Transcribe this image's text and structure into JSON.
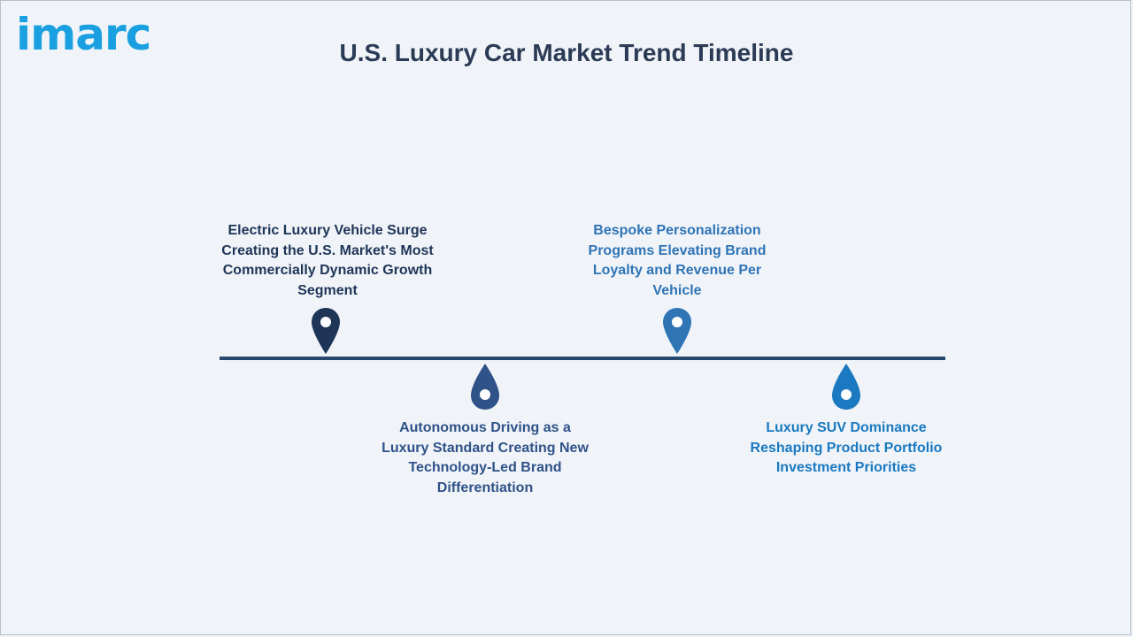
{
  "logo": {
    "text": "imarc",
    "color": "#1aa0e0"
  },
  "title": "U.S. Luxury Car Market Trend Timeline",
  "timeline": {
    "line_color": "#27486c",
    "events": [
      {
        "text": "Electric Luxury Vehicle Surge Creating the U.S. Market's Most Commercially Dynamic Growth Segment",
        "color": "#1f3557",
        "position": "above",
        "icon": "map-pin-icon"
      },
      {
        "text": "Autonomous Driving as a Luxury Standard Creating New Technology-Led Brand Differentiation",
        "color": "#2f5288",
        "position": "below",
        "icon": "drop-icon"
      },
      {
        "text": "Bespoke Personalization Programs Elevating Brand Loyalty and Revenue Per Vehicle",
        "color": "#2f74b5",
        "position": "above",
        "icon": "map-pin-icon"
      },
      {
        "text": "Luxury SUV Dominance Reshaping Product Portfolio Investment Priorities",
        "color": "#1a79c0",
        "position": "below",
        "icon": "drop-icon"
      }
    ]
  }
}
